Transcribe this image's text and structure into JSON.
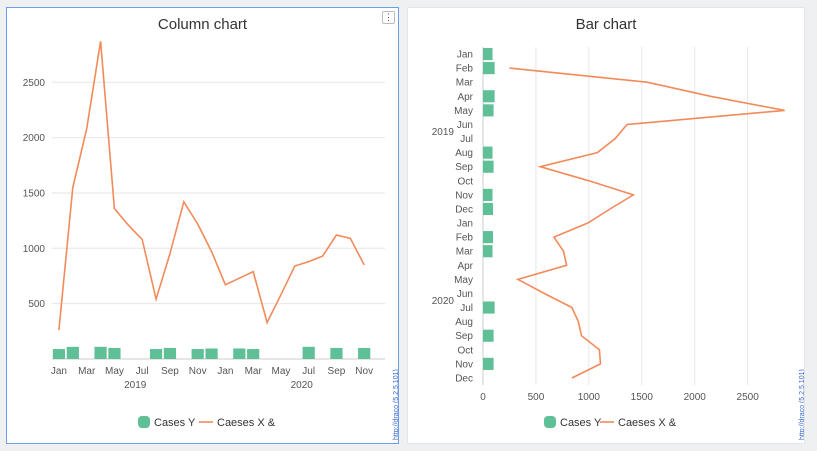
{
  "colors": {
    "bar": "#5fbf96",
    "line": "#f28a5a",
    "grid": "#e6e6e6",
    "accent_border": "#6d9eeb"
  },
  "credit": "http://draco (5.2.5.101)",
  "chart_data": [
    {
      "type": "bar",
      "orientation": "vertical",
      "title": "Column chart",
      "year_labels": [
        "2019",
        "2020"
      ],
      "categories": [
        "Jan",
        "Feb",
        "Mar",
        "Apr",
        "May",
        "Jun",
        "Jul",
        "Aug",
        "Sep",
        "Oct",
        "Nov",
        "Dec",
        "Jan",
        "Feb",
        "Mar",
        "Apr",
        "May",
        "Jun",
        "Jul",
        "Aug",
        "Sep",
        "Oct",
        "Nov",
        "Dec"
      ],
      "tick_labels": [
        "Jan",
        "Mar",
        "May",
        "Jul",
        "Sep",
        "Nov",
        "Jan",
        "Mar",
        "May",
        "Jul",
        "Sep",
        "Nov"
      ],
      "ylim": [
        0,
        2900
      ],
      "yticks": [
        500,
        1000,
        1500,
        2000,
        2500
      ],
      "grid": true,
      "legend_position": "bottom",
      "series": [
        {
          "name": "Cases Y",
          "type": "bar",
          "values": [
            90,
            110,
            null,
            110,
            100,
            null,
            null,
            90,
            100,
            null,
            90,
            95,
            null,
            95,
            90,
            null,
            null,
            null,
            110,
            null,
            100,
            null,
            100,
            null
          ]
        },
        {
          "name": "Caeses X &",
          "type": "line",
          "values": [
            260,
            1550,
            2080,
            2870,
            1360,
            1210,
            1080,
            540,
            950,
            1420,
            1220,
            970,
            670,
            730,
            790,
            330,
            580,
            840,
            880,
            930,
            1120,
            1090,
            850,
            null
          ]
        }
      ]
    },
    {
      "type": "bar",
      "orientation": "horizontal",
      "title": "Bar chart",
      "year_labels": [
        "2019",
        "2020"
      ],
      "categories": [
        "Jan",
        "Feb",
        "Mar",
        "Apr",
        "May",
        "Jun",
        "Jul",
        "Aug",
        "Sep",
        "Oct",
        "Nov",
        "Dec",
        "Jan",
        "Feb",
        "Mar",
        "Apr",
        "May",
        "Jun",
        "Jul",
        "Aug",
        "Sep",
        "Oct",
        "Nov",
        "Dec"
      ],
      "xlim": [
        0,
        2900
      ],
      "xticks": [
        0,
        500,
        1000,
        1500,
        2000,
        2500
      ],
      "grid": true,
      "legend_position": "bottom",
      "series": [
        {
          "name": "Cases Y",
          "type": "bar",
          "values": [
            90,
            110,
            null,
            110,
            100,
            null,
            null,
            90,
            100,
            null,
            90,
            95,
            null,
            95,
            90,
            null,
            null,
            null,
            110,
            null,
            100,
            null,
            100,
            null
          ]
        },
        {
          "name": "Caeses X &",
          "type": "line",
          "values": [
            null,
            250,
            1550,
            2150,
            2850,
            1360,
            1250,
            1080,
            540,
            1000,
            1420,
            1200,
            990,
            670,
            760,
            790,
            330,
            580,
            840,
            900,
            930,
            1100,
            1110,
            840
          ]
        }
      ]
    }
  ]
}
